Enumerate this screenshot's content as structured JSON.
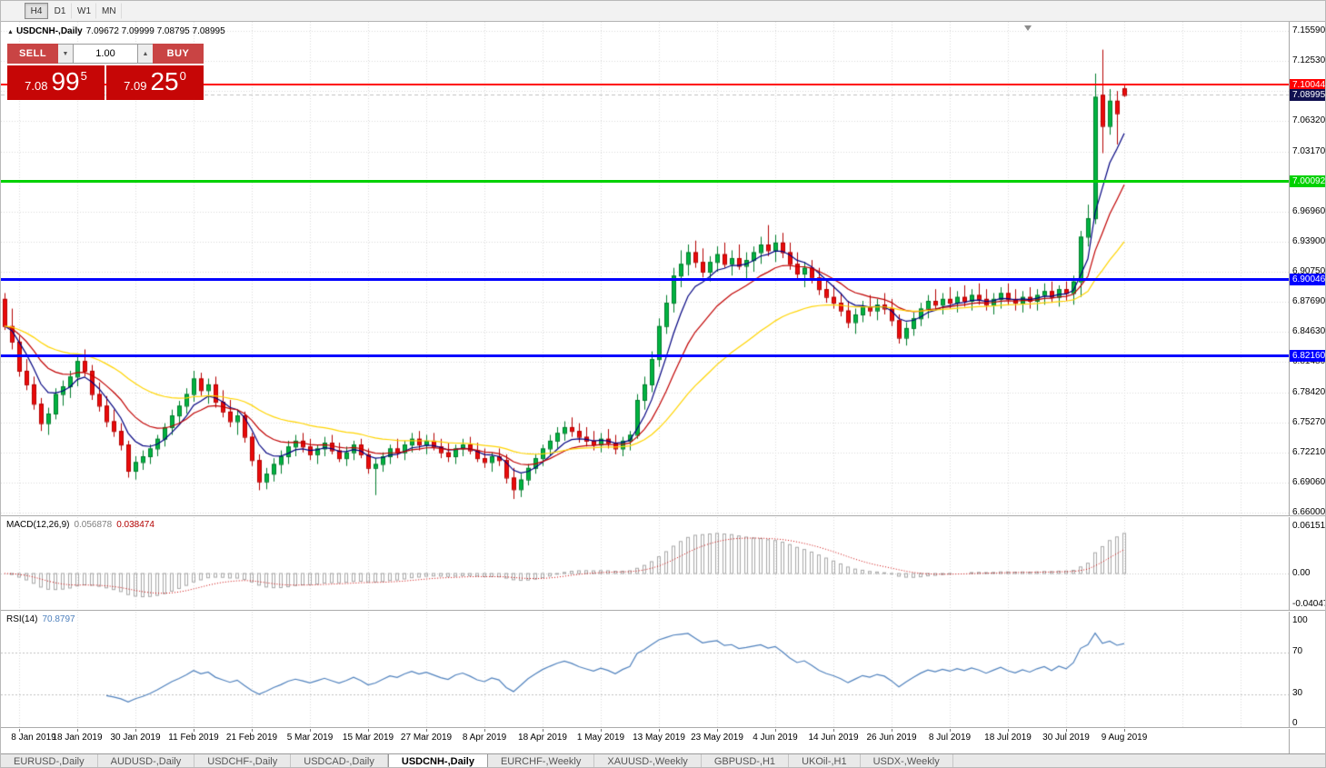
{
  "toolbar": {
    "timeframes": [
      {
        "label": "H4",
        "active": true
      },
      {
        "label": "D1",
        "active": false
      },
      {
        "label": "W1",
        "active": false
      },
      {
        "label": "MN",
        "active": false
      }
    ]
  },
  "chart_header": {
    "marker_icon": "▲",
    "title": "USDCNH-,Daily",
    "ohlc": "7.09672 7.09999 7.08795 7.08995"
  },
  "trade_panel": {
    "sell_label": "SELL",
    "buy_label": "BUY",
    "volume": "1.00",
    "down_glyph": "▼",
    "up_glyph": "▲",
    "button_color": "#c94444",
    "box_color": "#c60606",
    "bid": {
      "big": "7.08",
      "pips": "99",
      "pt": "5"
    },
    "ask": {
      "big": "7.09",
      "pips": "25",
      "pt": "0"
    }
  },
  "levels": [
    {
      "price": 7.10044,
      "label": "7.10044",
      "color": "#ff0000",
      "thickness": 2
    },
    {
      "price": 7.00092,
      "label": "7.00092",
      "color": "#00d100",
      "thickness": 3
    },
    {
      "price": 6.90046,
      "label": "6.90046",
      "color": "#0000ff",
      "thickness": 3
    },
    {
      "price": 6.8216,
      "label": "6.82160",
      "color": "#0000ff",
      "thickness": 3
    }
  ],
  "current_price": {
    "value": 7.08995,
    "label": "7.08995",
    "bg": "#101050",
    "line_color": "#c0c0c0"
  },
  "macd_panel": {
    "title": "MACD(12,26,9)",
    "value_main": "0.056878",
    "value_signal": "0.038474",
    "axis_labels": [
      "0.061514",
      "0.00",
      "-0.04047"
    ],
    "axis_values": [
      0.061514,
      0,
      -0.04047
    ],
    "histogram_color": "#a8a8a8",
    "signal_color": "#cc0000"
  },
  "rsi_panel": {
    "title": "RSI(14)",
    "value": "70.8797",
    "axis_labels": [
      "100",
      "70",
      "30",
      "0"
    ],
    "levels": [
      70,
      30
    ],
    "line_color": "#4f81bd"
  },
  "tabs": [
    {
      "label": "EURUSD-,Daily",
      "active": false
    },
    {
      "label": "AUDUSD-,Daily",
      "active": false
    },
    {
      "label": "USDCHF-,Daily",
      "active": false
    },
    {
      "label": "USDCAD-,Daily",
      "active": false
    },
    {
      "label": "USDCNH-,Daily",
      "active": true
    },
    {
      "label": "EURCHF-,Weekly",
      "active": false
    },
    {
      "label": "XAUUSD-,Weekly",
      "active": false
    },
    {
      "label": "GBPUSD-,H1",
      "active": false
    },
    {
      "label": "UKOil-,H1",
      "active": false
    },
    {
      "label": "USDX-,Weekly",
      "active": false
    }
  ],
  "chart_data": {
    "type": "candlestick",
    "symbol": "USDCNH-",
    "timeframe": "Daily",
    "ylim": [
      6.66,
      7.1559
    ],
    "grid_color": "#d9d9d9",
    "bull_color": "#00b341",
    "bull_border": "#007d2c",
    "bear_color": "#ea0b0b",
    "bear_border": "#b50000",
    "y_tick_labels": [
      "7.15590",
      "7.12530",
      "7.09470",
      "7.06320",
      "7.03170",
      "7.00020",
      "6.96960",
      "6.93900",
      "6.90750",
      "6.87690",
      "6.84630",
      "6.81480",
      "6.78420",
      "6.75270",
      "6.72210",
      "6.69060",
      "6.66000"
    ],
    "x_tick_labels": [
      "8 Jan 2019",
      "18 Jan 2019",
      "30 Jan 2019",
      "11 Feb 2019",
      "21 Feb 2019",
      "5 Mar 2019",
      "15 Mar 2019",
      "27 Mar 2019",
      "8 Apr 2019",
      "18 Apr 2019",
      "1 May 2019",
      "13 May 2019",
      "23 May 2019",
      "4 Jun 2019",
      "14 Jun 2019",
      "26 Jun 2019",
      "8 Jul 2019",
      "18 Jul 2019",
      "30 Jul 2019",
      "9 Aug 2019"
    ],
    "moving_averages": [
      {
        "period": 6,
        "color": "#000080"
      },
      {
        "period": 13,
        "color": "#c00000"
      },
      {
        "period": 32,
        "color": "#ffd400"
      }
    ],
    "macd": {
      "fast": 12,
      "slow": 26,
      "signal": 9
    },
    "rsi": {
      "period": 14
    },
    "candles": [
      [
        6.88,
        6.886,
        6.848,
        6.852
      ],
      [
        6.852,
        6.87,
        6.828,
        6.836
      ],
      [
        6.836,
        6.842,
        6.8,
        6.806
      ],
      [
        6.806,
        6.818,
        6.786,
        6.792
      ],
      [
        6.792,
        6.8,
        6.766,
        6.772
      ],
      [
        6.772,
        6.778,
        6.744,
        6.752
      ],
      [
        6.752,
        6.768,
        6.74,
        6.762
      ],
      [
        6.762,
        6.788,
        6.756,
        6.782
      ],
      [
        6.782,
        6.796,
        6.77,
        6.79
      ],
      [
        6.79,
        6.806,
        6.778,
        6.8
      ],
      [
        6.8,
        6.822,
        6.79,
        6.816
      ],
      [
        6.816,
        6.828,
        6.8,
        6.806
      ],
      [
        6.806,
        6.812,
        6.776,
        6.782
      ],
      [
        6.782,
        6.794,
        6.764,
        6.77
      ],
      [
        6.77,
        6.78,
        6.748,
        6.754
      ],
      [
        6.754,
        6.766,
        6.738,
        6.744
      ],
      [
        6.744,
        6.752,
        6.724,
        6.73
      ],
      [
        6.73,
        6.734,
        6.696,
        6.703
      ],
      [
        6.703,
        6.718,
        6.694,
        6.712
      ],
      [
        6.712,
        6.724,
        6.704,
        6.718
      ],
      [
        6.718,
        6.73,
        6.71,
        6.726
      ],
      [
        6.726,
        6.74,
        6.718,
        6.736
      ],
      [
        6.736,
        6.752,
        6.728,
        6.748
      ],
      [
        6.748,
        6.766,
        6.74,
        6.76
      ],
      [
        6.76,
        6.775,
        6.752,
        6.77
      ],
      [
        6.77,
        6.788,
        6.762,
        6.782
      ],
      [
        6.782,
        6.806,
        6.774,
        6.798
      ],
      [
        6.798,
        6.804,
        6.78,
        6.786
      ],
      [
        6.786,
        6.798,
        6.772,
        6.792
      ],
      [
        6.792,
        6.8,
        6.768,
        6.774
      ],
      [
        6.774,
        6.786,
        6.758,
        6.764
      ],
      [
        6.764,
        6.776,
        6.748,
        6.754
      ],
      [
        6.754,
        6.766,
        6.74,
        6.76
      ],
      [
        6.76,
        6.764,
        6.732,
        6.738
      ],
      [
        6.738,
        6.742,
        6.708,
        6.714
      ],
      [
        6.714,
        6.72,
        6.683,
        6.692
      ],
      [
        6.692,
        6.706,
        6.684,
        6.7
      ],
      [
        6.7,
        6.716,
        6.692,
        6.71
      ],
      [
        6.71,
        6.724,
        6.7,
        6.718
      ],
      [
        6.718,
        6.734,
        6.71,
        6.728
      ],
      [
        6.728,
        6.74,
        6.718,
        6.734
      ],
      [
        6.734,
        6.742,
        6.722,
        6.728
      ],
      [
        6.728,
        6.736,
        6.714,
        6.72
      ],
      [
        6.72,
        6.73,
        6.71,
        6.726
      ],
      [
        6.726,
        6.738,
        6.718,
        6.732
      ],
      [
        6.732,
        6.74,
        6.72,
        6.724
      ],
      [
        6.724,
        6.732,
        6.712,
        6.716
      ],
      [
        6.716,
        6.728,
        6.708,
        6.722
      ],
      [
        6.722,
        6.734,
        6.714,
        6.73
      ],
      [
        6.73,
        6.736,
        6.716,
        6.72
      ],
      [
        6.72,
        6.726,
        6.7,
        6.706
      ],
      [
        6.706,
        6.716,
        6.678,
        6.71
      ],
      [
        6.71,
        6.722,
        6.702,
        6.718
      ],
      [
        6.718,
        6.73,
        6.71,
        6.726
      ],
      [
        6.726,
        6.736,
        6.716,
        6.722
      ],
      [
        6.722,
        6.734,
        6.714,
        6.73
      ],
      [
        6.73,
        6.742,
        6.722,
        6.736
      ],
      [
        6.736,
        6.744,
        6.724,
        6.73
      ],
      [
        6.73,
        6.74,
        6.72,
        6.734
      ],
      [
        6.734,
        6.742,
        6.724,
        6.728
      ],
      [
        6.728,
        6.736,
        6.716,
        6.722
      ],
      [
        6.722,
        6.732,
        6.712,
        6.718
      ],
      [
        6.718,
        6.73,
        6.71,
        6.726
      ],
      [
        6.726,
        6.736,
        6.718,
        6.73
      ],
      [
        6.73,
        6.738,
        6.72,
        6.724
      ],
      [
        6.724,
        6.732,
        6.712,
        6.716
      ],
      [
        6.716,
        6.726,
        6.706,
        6.712
      ],
      [
        6.712,
        6.722,
        6.702,
        6.718
      ],
      [
        6.718,
        6.726,
        6.708,
        6.714
      ],
      [
        6.714,
        6.72,
        6.69,
        6.696
      ],
      [
        6.696,
        6.706,
        6.674,
        6.684
      ],
      [
        6.684,
        6.7,
        6.676,
        6.694
      ],
      [
        6.694,
        6.71,
        6.688,
        6.706
      ],
      [
        6.706,
        6.72,
        6.7,
        6.716
      ],
      [
        6.716,
        6.73,
        6.708,
        6.726
      ],
      [
        6.726,
        6.74,
        6.718,
        6.734
      ],
      [
        6.734,
        6.748,
        6.726,
        6.742
      ],
      [
        6.742,
        6.754,
        6.734,
        6.748
      ],
      [
        6.748,
        6.758,
        6.738,
        6.744
      ],
      [
        6.744,
        6.752,
        6.732,
        6.738
      ],
      [
        6.738,
        6.748,
        6.728,
        6.734
      ],
      [
        6.734,
        6.744,
        6.724,
        6.73
      ],
      [
        6.73,
        6.742,
        6.722,
        6.736
      ],
      [
        6.736,
        6.746,
        6.726,
        6.732
      ],
      [
        6.732,
        6.74,
        6.72,
        6.726
      ],
      [
        6.726,
        6.738,
        6.718,
        6.734
      ],
      [
        6.734,
        6.744,
        6.724,
        6.74
      ],
      [
        6.74,
        6.782,
        6.736,
        6.776
      ],
      [
        6.776,
        6.8,
        6.766,
        6.792
      ],
      [
        6.792,
        6.826,
        6.784,
        6.818
      ],
      [
        6.818,
        6.86,
        6.81,
        6.852
      ],
      [
        6.852,
        6.884,
        6.844,
        6.876
      ],
      [
        6.876,
        6.912,
        6.866,
        6.904
      ],
      [
        6.904,
        6.93,
        6.892,
        6.916
      ],
      [
        6.916,
        6.936,
        6.904,
        6.928
      ],
      [
        6.928,
        6.94,
        6.912,
        6.918
      ],
      [
        6.918,
        6.932,
        6.902,
        6.908
      ],
      [
        6.908,
        6.924,
        6.898,
        6.918
      ],
      [
        6.918,
        6.934,
        6.908,
        6.926
      ],
      [
        6.926,
        6.938,
        6.912,
        6.916
      ],
      [
        6.916,
        6.93,
        6.904,
        6.922
      ],
      [
        6.922,
        6.936,
        6.91,
        6.914
      ],
      [
        6.914,
        6.928,
        6.9,
        6.92
      ],
      [
        6.92,
        6.934,
        6.908,
        6.928
      ],
      [
        6.928,
        6.944,
        6.916,
        6.936
      ],
      [
        6.936,
        6.956,
        6.924,
        6.93
      ],
      [
        6.93,
        6.946,
        6.918,
        6.938
      ],
      [
        6.938,
        6.948,
        6.922,
        6.928
      ],
      [
        6.928,
        6.938,
        6.91,
        6.916
      ],
      [
        6.916,
        6.928,
        6.9,
        6.906
      ],
      [
        6.906,
        6.918,
        6.892,
        6.912
      ],
      [
        6.912,
        6.92,
        6.896,
        6.902
      ],
      [
        6.902,
        6.912,
        6.884,
        6.89
      ],
      [
        6.89,
        6.9,
        6.876,
        6.882
      ],
      [
        6.882,
        6.894,
        6.87,
        6.876
      ],
      [
        6.876,
        6.886,
        6.862,
        6.868
      ],
      [
        6.868,
        6.878,
        6.85,
        6.856
      ],
      [
        6.856,
        6.87,
        6.844,
        6.864
      ],
      [
        6.864,
        6.878,
        6.856,
        6.872
      ],
      [
        6.872,
        6.884,
        6.862,
        6.868
      ],
      [
        6.868,
        6.88,
        6.858,
        6.874
      ],
      [
        6.874,
        6.886,
        6.864,
        6.87
      ],
      [
        6.87,
        6.88,
        6.852,
        6.858
      ],
      [
        6.858,
        6.864,
        6.834,
        6.84
      ],
      [
        6.84,
        6.856,
        6.832,
        6.85
      ],
      [
        6.85,
        6.866,
        6.842,
        6.86
      ],
      [
        6.86,
        6.876,
        6.852,
        6.87
      ],
      [
        6.87,
        6.884,
        6.86,
        6.878
      ],
      [
        6.878,
        6.89,
        6.868,
        6.874
      ],
      [
        6.874,
        6.886,
        6.864,
        6.88
      ],
      [
        6.88,
        6.892,
        6.87,
        6.876
      ],
      [
        6.876,
        6.888,
        6.866,
        6.882
      ],
      [
        6.882,
        6.894,
        6.872,
        6.878
      ],
      [
        6.878,
        6.89,
        6.868,
        6.884
      ],
      [
        6.884,
        6.896,
        6.874,
        6.88
      ],
      [
        6.88,
        6.89,
        6.868,
        6.874
      ],
      [
        6.874,
        6.886,
        6.864,
        6.88
      ],
      [
        6.88,
        6.892,
        6.87,
        6.886
      ],
      [
        6.886,
        6.896,
        6.874,
        6.88
      ],
      [
        6.88,
        6.89,
        6.868,
        6.876
      ],
      [
        6.876,
        6.888,
        6.866,
        6.882
      ],
      [
        6.882,
        6.892,
        6.87,
        6.878
      ],
      [
        6.878,
        6.89,
        6.868,
        6.884
      ],
      [
        6.884,
        6.896,
        6.874,
        6.888
      ],
      [
        6.888,
        6.898,
        6.876,
        6.882
      ],
      [
        6.882,
        6.894,
        6.872,
        6.89
      ],
      [
        6.89,
        6.898,
        6.878,
        6.886
      ],
      [
        6.886,
        6.904,
        6.874,
        6.898
      ],
      [
        6.898,
        6.95,
        6.882,
        6.944
      ],
      [
        6.944,
        6.977,
        6.934,
        6.963
      ],
      [
        6.963,
        7.112,
        6.957,
        7.088
      ],
      [
        7.09,
        7.1366,
        7.03,
        7.058
      ],
      [
        7.058,
        7.096,
        7.049,
        7.084
      ],
      [
        7.084,
        7.094,
        7.039,
        7.071
      ],
      [
        7.0967,
        7.0999,
        7.0879,
        7.0899
      ]
    ]
  }
}
